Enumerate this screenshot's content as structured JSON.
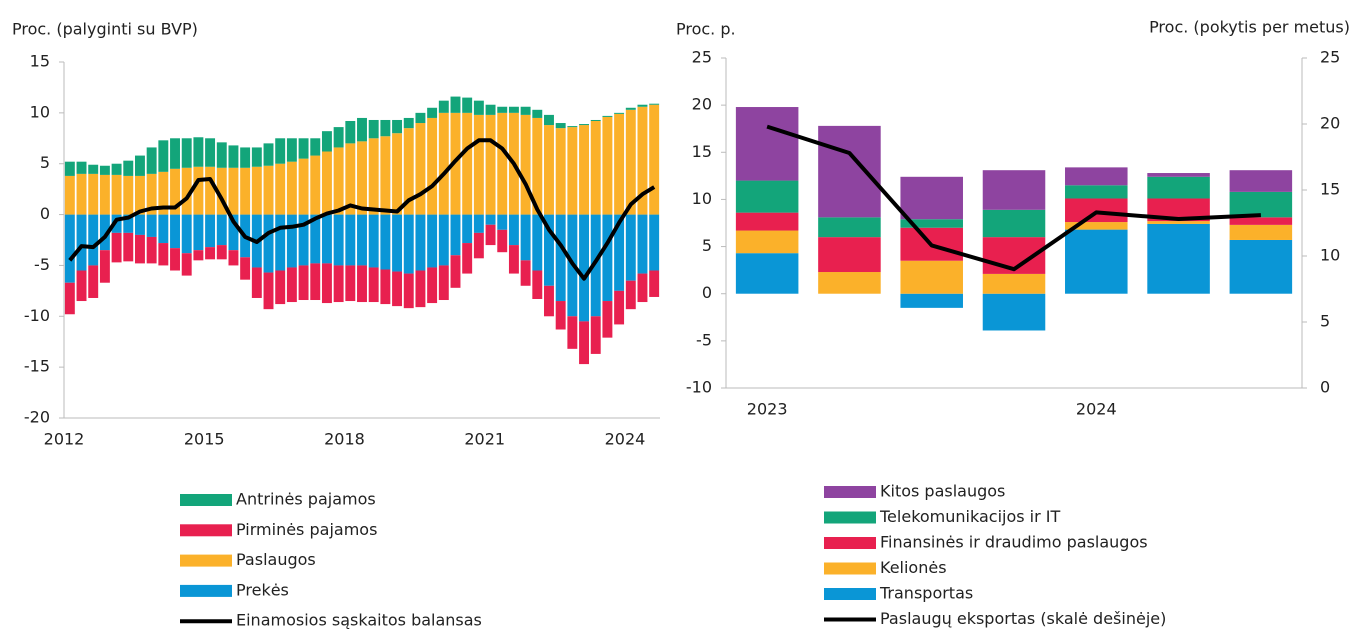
{
  "chart_data": [
    {
      "type": "bar",
      "stacked": true,
      "ylabel": "Proc. (palyginti su BVP)",
      "categories": [
        "2012",
        null,
        null,
        null,
        null,
        null,
        null,
        null,
        null,
        null,
        null,
        null,
        "2015",
        null,
        null,
        null,
        null,
        null,
        null,
        null,
        null,
        null,
        null,
        null,
        "2018",
        null,
        null,
        null,
        null,
        null,
        null,
        null,
        null,
        null,
        null,
        null,
        "2021",
        null,
        null,
        null,
        null,
        null,
        null,
        null,
        null,
        null,
        null,
        null,
        "2024",
        null,
        null
      ],
      "ylim": [
        -20,
        15
      ],
      "yticks": [
        -20,
        -15,
        -10,
        -5,
        0,
        5,
        10,
        15
      ],
      "series": [
        {
          "name": "Prekės",
          "color": "#0a96d6",
          "values": [
            -6.7,
            -5.5,
            -5.0,
            -3.5,
            -1.8,
            -1.8,
            -2.0,
            -2.2,
            -2.8,
            -3.3,
            -3.8,
            -3.5,
            -3.2,
            -3.0,
            -3.5,
            -4.2,
            -5.2,
            -5.7,
            -5.5,
            -5.2,
            -5.0,
            -4.8,
            -4.8,
            -5.0,
            -5.0,
            -5.0,
            -5.2,
            -5.4,
            -5.6,
            -5.8,
            -5.5,
            -5.2,
            -5.0,
            -4.0,
            -2.8,
            -1.8,
            -1.0,
            -1.5,
            -3.0,
            -4.5,
            -5.5,
            -7.0,
            -8.5,
            -10.0,
            -10.5,
            -10.0,
            -8.5,
            -7.5,
            -6.5,
            -5.8,
            -5.5
          ]
        },
        {
          "name": "Paslaugos",
          "color": "#fbb12a",
          "values": [
            3.8,
            4.0,
            4.0,
            3.9,
            3.9,
            3.8,
            3.8,
            4.0,
            4.2,
            4.5,
            4.6,
            4.7,
            4.7,
            4.6,
            4.6,
            4.6,
            4.7,
            4.8,
            5.0,
            5.2,
            5.5,
            5.8,
            6.2,
            6.6,
            7.0,
            7.2,
            7.5,
            7.7,
            8.0,
            8.5,
            9.0,
            9.5,
            10.0,
            10.0,
            10.0,
            9.8,
            9.8,
            10.0,
            10.0,
            9.8,
            9.5,
            8.8,
            8.5,
            8.6,
            8.8,
            9.2,
            9.6,
            9.9,
            10.3,
            10.6,
            10.8
          ]
        },
        {
          "name": "Pirminės pajamos",
          "color": "#e8204f",
          "values": [
            -3.1,
            -3.0,
            -3.2,
            -3.2,
            -2.9,
            -2.8,
            -2.8,
            -2.6,
            -2.2,
            -2.2,
            -2.2,
            -1.0,
            -1.2,
            -1.4,
            -1.5,
            -2.2,
            -3.0,
            -3.6,
            -3.3,
            -3.4,
            -3.4,
            -3.6,
            -3.9,
            -3.6,
            -3.5,
            -3.6,
            -3.4,
            -3.4,
            -3.4,
            -3.4,
            -3.6,
            -3.5,
            -3.4,
            -3.2,
            -3.0,
            -2.5,
            -2.0,
            -2.2,
            -2.8,
            -2.5,
            -2.8,
            -3.0,
            -2.8,
            -3.2,
            -4.2,
            -3.7,
            -3.6,
            -3.3,
            -2.8,
            -2.8,
            -2.6
          ]
        },
        {
          "name": "Antrinės pajamos",
          "color": "#13a57a",
          "values": [
            1.4,
            1.2,
            0.9,
            0.9,
            1.1,
            1.5,
            2.0,
            2.6,
            3.1,
            3.0,
            2.9,
            2.9,
            2.8,
            2.5,
            2.2,
            2.0,
            1.9,
            2.2,
            2.5,
            2.3,
            2.0,
            1.7,
            2.0,
            2.0,
            2.2,
            2.3,
            1.8,
            1.6,
            1.3,
            1.0,
            1.0,
            1.0,
            1.2,
            1.6,
            1.5,
            1.4,
            1.0,
            0.6,
            0.6,
            0.8,
            0.8,
            1.0,
            0.5,
            0.1,
            0.1,
            0.1,
            0.1,
            0.1,
            0.2,
            0.2,
            0.1
          ]
        },
        {
          "name": "Einamosios sąskaitos balansas",
          "type": "line",
          "color": "#000000",
          "values": [
            -4.5,
            -3.1,
            -3.2,
            -2.2,
            -0.5,
            -0.3,
            0.3,
            0.6,
            0.7,
            0.7,
            1.6,
            3.4,
            3.5,
            1.5,
            -0.7,
            -2.2,
            -2.7,
            -1.8,
            -1.3,
            -1.2,
            -1.0,
            -0.4,
            0.1,
            0.4,
            0.9,
            0.6,
            0.5,
            0.4,
            0.3,
            1.4,
            2.0,
            2.8,
            4.0,
            5.3,
            6.5,
            7.3,
            7.3,
            6.5,
            5.0,
            3.0,
            0.5,
            -1.5,
            -3.0,
            -4.8,
            -6.3,
            -4.6,
            -2.8,
            -0.8,
            1.0,
            2.0,
            2.7
          ]
        }
      ]
    },
    {
      "type": "bar",
      "stacked": true,
      "ylabel": "Proc. p.",
      "y2label": "Proc. (pokytis per metus)",
      "categories": [
        "2023",
        null,
        null,
        null,
        "2024",
        null,
        null
      ],
      "ylim": [
        -10,
        25
      ],
      "yticks": [
        -10,
        -5,
        0,
        5,
        10,
        15,
        20,
        25
      ],
      "y2lim": [
        0,
        25
      ],
      "y2ticks": [
        0,
        5,
        10,
        15,
        20,
        25
      ],
      "series": [
        {
          "name": "Transportas",
          "color": "#0a96d6",
          "values": [
            4.3,
            0,
            -1.5,
            -3.9,
            6.8,
            7.4,
            5.7
          ]
        },
        {
          "name": "Kelionės",
          "color": "#fbb12a",
          "values": [
            2.4,
            2.3,
            3.5,
            2.1,
            0.8,
            0.3,
            1.6
          ]
        },
        {
          "name": "Finansinės ir draudimo paslaugos",
          "color": "#e8204f",
          "values": [
            1.9,
            3.7,
            3.5,
            3.9,
            2.5,
            2.4,
            0.8
          ]
        },
        {
          "name": "Telekomunikacijos ir IT",
          "color": "#13a57a",
          "values": [
            3.4,
            2.1,
            0.9,
            2.9,
            1.4,
            2.3,
            2.7
          ]
        },
        {
          "name": "Kitos paslaugos",
          "color": "#8e44a0",
          "values": [
            7.8,
            9.7,
            4.5,
            4.2,
            1.9,
            0.4,
            2.3
          ]
        },
        {
          "name": "Paslaugų eksportas (skalė dešinėje)",
          "type": "line",
          "axis": "y2",
          "color": "#000000",
          "values": [
            19.8,
            17.8,
            10.8,
            9.0,
            13.3,
            12.8,
            13.1
          ]
        }
      ]
    }
  ]
}
